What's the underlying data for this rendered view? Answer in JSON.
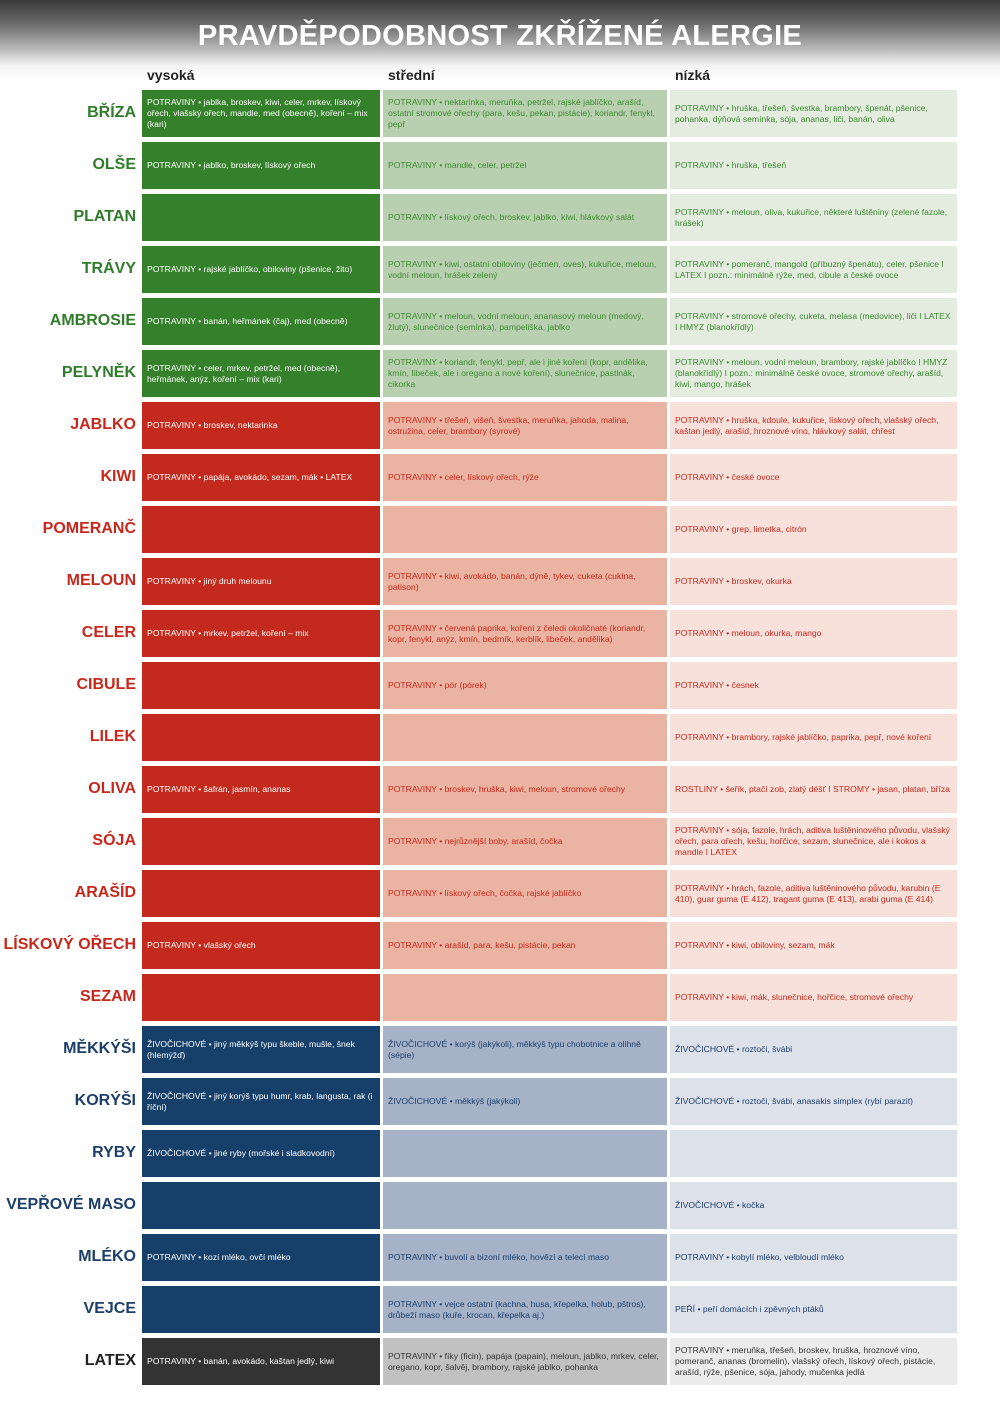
{
  "title": "PRAVDĚPODOBNOST ZKŘÍŽENÉ ALERGIE",
  "columns": {
    "high": "vysoká",
    "mid": "střední",
    "low": "nízká"
  },
  "groups": {
    "green": {
      "c1": "#35802b",
      "c2": "#b9d0b0",
      "c3": "#e4ecdf",
      "text": "#3b8a30",
      "label": "#2f7d2a"
    },
    "red": {
      "c1": "#c4291d",
      "c2": "#ebb3a1",
      "c3": "#f7e1da",
      "text": "#c8281c",
      "label": "#c8281c"
    },
    "blue": {
      "c1": "#16406a",
      "c2": "#a5b2c8",
      "c3": "#dde1ea",
      "text": "#1d3f6b",
      "label": "#1d3f6b"
    },
    "gray": {
      "c1": "#333333",
      "c2": "#c1c1c1",
      "c3": "#ebebeb",
      "text": "#333333",
      "label": "#222222"
    }
  },
  "rows": [
    {
      "label": "BŘÍZA",
      "group": "green",
      "high": "POTRAVINY • jablka, broskev, kiwi, celer, mrkev, lískový ořech, vlašský ořech, mandle, med (obecně), koření – mix (kari)",
      "mid": "POTRAVINY • nektarinka, meruňka, petržel, rajské jablíčko, arašíd, ostatní stromové ořechy (para, kešu, pekan, pistácie), koriandr, fenykl, pepř",
      "low": "POTRAVINY • hruška, třešeň, švestka, brambory, špenát, pšenice, pohanka, dýňová semínka, sója, ananas, liči, banán, oliva"
    },
    {
      "label": "OLŠE",
      "group": "green",
      "high": "POTRAVINY • jablko, broskev, lískový ořech",
      "mid": "POTRAVINY • mandle, celer, petržel",
      "low": "POTRAVINY • hruška, třešeň"
    },
    {
      "label": "PLATAN",
      "group": "green",
      "high": "",
      "mid": "POTRAVINY • lískový ořech, broskev, jablko, kiwi, hlávkový salát",
      "low": "POTRAVINY • meloun, oliva, kukuřice, některé luštěniny (zelené fazole, hrášek)"
    },
    {
      "label": "TRÁVY",
      "group": "green",
      "high": "POTRAVINY • rajské jablíčko, obiloviny (pšenice, žito)",
      "mid": "POTRAVINY • kiwi, ostatní obiloviny (ječmen, oves), kukuřice, meloun, vodní meloun, hrášek zelený",
      "low": "POTRAVINY • pomeranč, mangold (příbuzný špenátu), celer, pšenice I LATEX I pozn.: minimálně rýže, med, cibule a české ovoce"
    },
    {
      "label": "AMBROSIE",
      "group": "green",
      "high": "POTRAVINY • banán, heřmánek (čaj), med (obecně)",
      "mid": "POTRAVINY • meloun, vodní meloun, ananasový meloun (medový, žlutý), slunečnice (semínka), pampeliška, jablko",
      "low": "POTRAVINY • stromové ořechy, cuketa, melasa (medovice), liči I LATEX I HMYZ (blanokřídlý)"
    },
    {
      "label": "PELYNĚK",
      "group": "green",
      "high": "POTRAVINY • celer, mrkev, petržel, med (obecně), heřmánek, anýz, koření – mix (kari)",
      "mid": "POTRAVINY • koriandr, fenykl, pepř, ale i jiné koření (kopr, andělika, kmín, libeček, ale i oregano a nové koření), slunečnice, pastinák, cikorka",
      "low": "POTRAVINY • meloun, vodní meloun, brambory, rajské jablíčko I HMYZ (blanokřídlý) I pozn.: minimálně české ovoce, stromové ořechy, arašíd, kiwi, mango, hrášek"
    },
    {
      "label": "JABLKO",
      "group": "red",
      "high": "POTRAVINY • broskev, nektarinka",
      "mid": "POTRAVINY • třešeň, višeň, švestka, meruňka, jahoda, malina, ostružina, celer, brambory (syrové)",
      "low": "POTRAVINY • hruška, kdoule, kukuřice, lískový ořech, vlašský ořech, kaštan jedlý, arašíd, hroznové víno, hlávkový salát, chřest"
    },
    {
      "label": "KIWI",
      "group": "red",
      "high": "POTRAVINY • papája, avokádo, sezam, mák • LATEX",
      "mid": "POTRAVINY • celer, lískový ořech, rýže",
      "low": "POTRAVINY • české ovoce"
    },
    {
      "label": "POMERANČ",
      "group": "red",
      "high": "",
      "mid": "",
      "low": "POTRAVINY • grep, limetka, citrón"
    },
    {
      "label": "MELOUN",
      "group": "red",
      "high": "POTRAVINY • jiný druh melounu",
      "mid": "POTRAVINY • kiwi, avokádo, banán, dýně, tykev, cuketa (cukína, patison)",
      "low": "POTRAVINY • broskev, okurka"
    },
    {
      "label": "CELER",
      "group": "red",
      "high": "POTRAVINY • mrkev, petržel, koření – mix",
      "mid": "POTRAVINY • červená paprika, koření z čeledi okoličnaté (koriandr, kopr, fenykl, anýz, kmín, bedrník, kerblík, libeček, andělika)",
      "low": "POTRAVINY • meloun, okurka, mango"
    },
    {
      "label": "CIBULE",
      "group": "red",
      "high": "",
      "mid": "POTRAVINY • pór (pórek)",
      "low": "POTRAVINY • česnek"
    },
    {
      "label": "LILEK",
      "group": "red",
      "high": "",
      "mid": "",
      "low": "POTRAVINY • brambory, rajské jablíčko, paprika, pepř, nové koření"
    },
    {
      "label": "OLIVA",
      "group": "red",
      "high": "POTRAVINY • šafrán, jasmín, ananas",
      "mid": "POTRAVINY • broskev, hruška, kiwi, meloun, stromové ořechy",
      "low": "ROSTLINY • šeřík, ptačí zob, zlatý déšť I STROMY • jasan, platan, bříza"
    },
    {
      "label": "SÓJA",
      "group": "red",
      "high": "",
      "mid": "POTRAVINY • nejrůznější boby, arašíd, čočka",
      "low": "POTRAVINY • sója, fazole, hrách, aditiva luštěninového původu, vlašský ořech, para ořech, kešu, hořčice, sezam, slunečnice, ale i kokos a mandle I LATEX"
    },
    {
      "label": "ARAŠÍD",
      "group": "red",
      "high": "",
      "mid": "POTRAVINY • lískový ořech, čočka, rajské jablíčko",
      "low": "POTRAVINY • hrách, fazole, aditiva luštěninového původu, karubin (E 410), guar guma (E 412), tragant guma (E 413), arabi guma (E 414)"
    },
    {
      "label": "LÍSKOVÝ OŘECH",
      "group": "red",
      "high": "POTRAVINY • vlašský ořech",
      "mid": "POTRAVINY • arašíd, para, kešu, pistácie, pekan",
      "low": "POTRAVINY • kiwi, obiloviny, sezam, mák"
    },
    {
      "label": "SEZAM",
      "group": "red",
      "high": "",
      "mid": "",
      "low": "POTRAVINY • kiwi, mák, slunečnice, hořčice, stromové ořechy"
    },
    {
      "label": "MĚKKÝŠI",
      "group": "blue",
      "high": "ŽIVOČICHOVÉ • jiný měkkýš typu škeble, mušle, šnek (hlemýžď)",
      "mid": "ŽIVOČICHOVÉ • korýš (jakýkoli), měkkýš typu chobotnice a olihně (sépie)",
      "low": "ŽIVOČICHOVÉ • roztoči, švábi"
    },
    {
      "label": "KORÝŠI",
      "group": "blue",
      "high": "ŽIVOČICHOVÉ • jiný korýš typu humr, krab, langusta, rak (i říční)",
      "mid": "ŽIVOČICHOVÉ • měkkýš (jakýkoli)",
      "low": "ŽIVOČICHOVÉ • roztoči, švábi, anasakis simplex (rybí parazit)"
    },
    {
      "label": "RYBY",
      "group": "blue",
      "high": "ŽIVOČICHOVÉ • jiné ryby (mořské i sladkovodní)",
      "mid": "",
      "low": ""
    },
    {
      "label": "VEPŘOVÉ MASO",
      "group": "blue",
      "high": "",
      "mid": "",
      "low": "ŽIVOČICHOVÉ • kočka"
    },
    {
      "label": "MLÉKO",
      "group": "blue",
      "high": "POTRAVINY • kozí mléko, ovčí mléko",
      "mid": "POTRAVINY • buvolí a bizoní mléko, hovězí a telecí maso",
      "low": "POTRAVINY • kobylí mléko, velbloudí mléko"
    },
    {
      "label": "VEJCE",
      "group": "blue",
      "high": "",
      "mid": "POTRAVINY • vejce ostatní (kachna, husa, křepelka, holub, pštros), drůbeží maso (kuře, krocan, křepelka aj.)",
      "low": "PEŘÍ • peří domácích i zpěvných ptáků"
    },
    {
      "label": "LATEX",
      "group": "gray",
      "high": "POTRAVINY • banán, avokádo, kaštan jedlý, kiwi",
      "mid": "POTRAVINY • fíky (ficin), papája (papain), meloun, jablko, mrkev, celer, oregano, kopr, šalvěj, brambory, rajské jablko, pohanka",
      "low": "POTRAVINY • meruňka, třešeň, broskev, hruška, hroznové víno, pomeranč, ananas (bromelin), vlašský ořech, lískový ořech, pistácie, arašíd, rýže, pšenice, sója, jahody, mučenka jedlá"
    }
  ]
}
